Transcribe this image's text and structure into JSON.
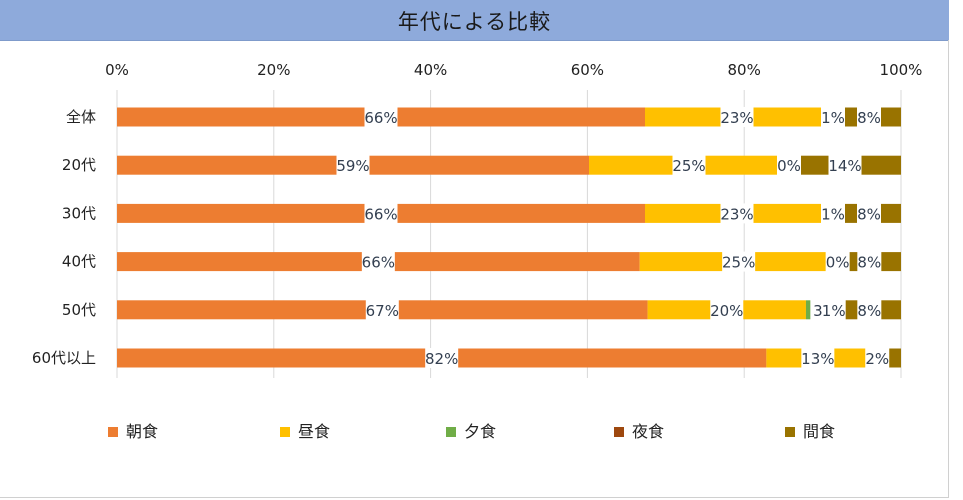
{
  "title": "年代による比較",
  "chart_data": {
    "type": "bar",
    "orientation": "horizontal",
    "stacked": "percent",
    "categories": [
      "全体",
      "20代",
      "30代",
      "40代",
      "50代",
      "60代以上"
    ],
    "xlim": [
      0,
      100
    ],
    "x_ticks": [
      "0%",
      "20%",
      "40%",
      "60%",
      "80%",
      "100%"
    ],
    "grid": "vertical",
    "legend_position": "bottom",
    "series": [
      {
        "name": "朝食",
        "color": "#ED7D31",
        "values": [
          66,
          59,
          66,
          66,
          67,
          82
        ],
        "labels": [
          "66%",
          "59%",
          "66%",
          "66%",
          "67%",
          "82%"
        ]
      },
      {
        "name": "昼食",
        "color": "#FFC000",
        "values": [
          23,
          25,
          23,
          25,
          20,
          13
        ],
        "labels": [
          "23%",
          "25%",
          "23%",
          "25%",
          "20%",
          "13%"
        ]
      },
      {
        "name": "夕食",
        "color": "#70AD47",
        "values": [
          0,
          0,
          0,
          0,
          3,
          0
        ],
        "labels": [
          "",
          "",
          "",
          "",
          "3",
          ""
        ]
      },
      {
        "name": "夜食",
        "color": "#9E480E",
        "values": [
          1,
          0,
          1,
          0,
          1,
          2
        ],
        "labels": [
          "1%",
          "0%",
          "1%",
          "0%",
          "1%",
          "2%"
        ]
      },
      {
        "name": "間食",
        "color": "#997300",
        "values": [
          8,
          14,
          8,
          8,
          8,
          2
        ],
        "labels": [
          "8%",
          "14%",
          "8%",
          "8%",
          "8%",
          ""
        ]
      }
    ]
  }
}
